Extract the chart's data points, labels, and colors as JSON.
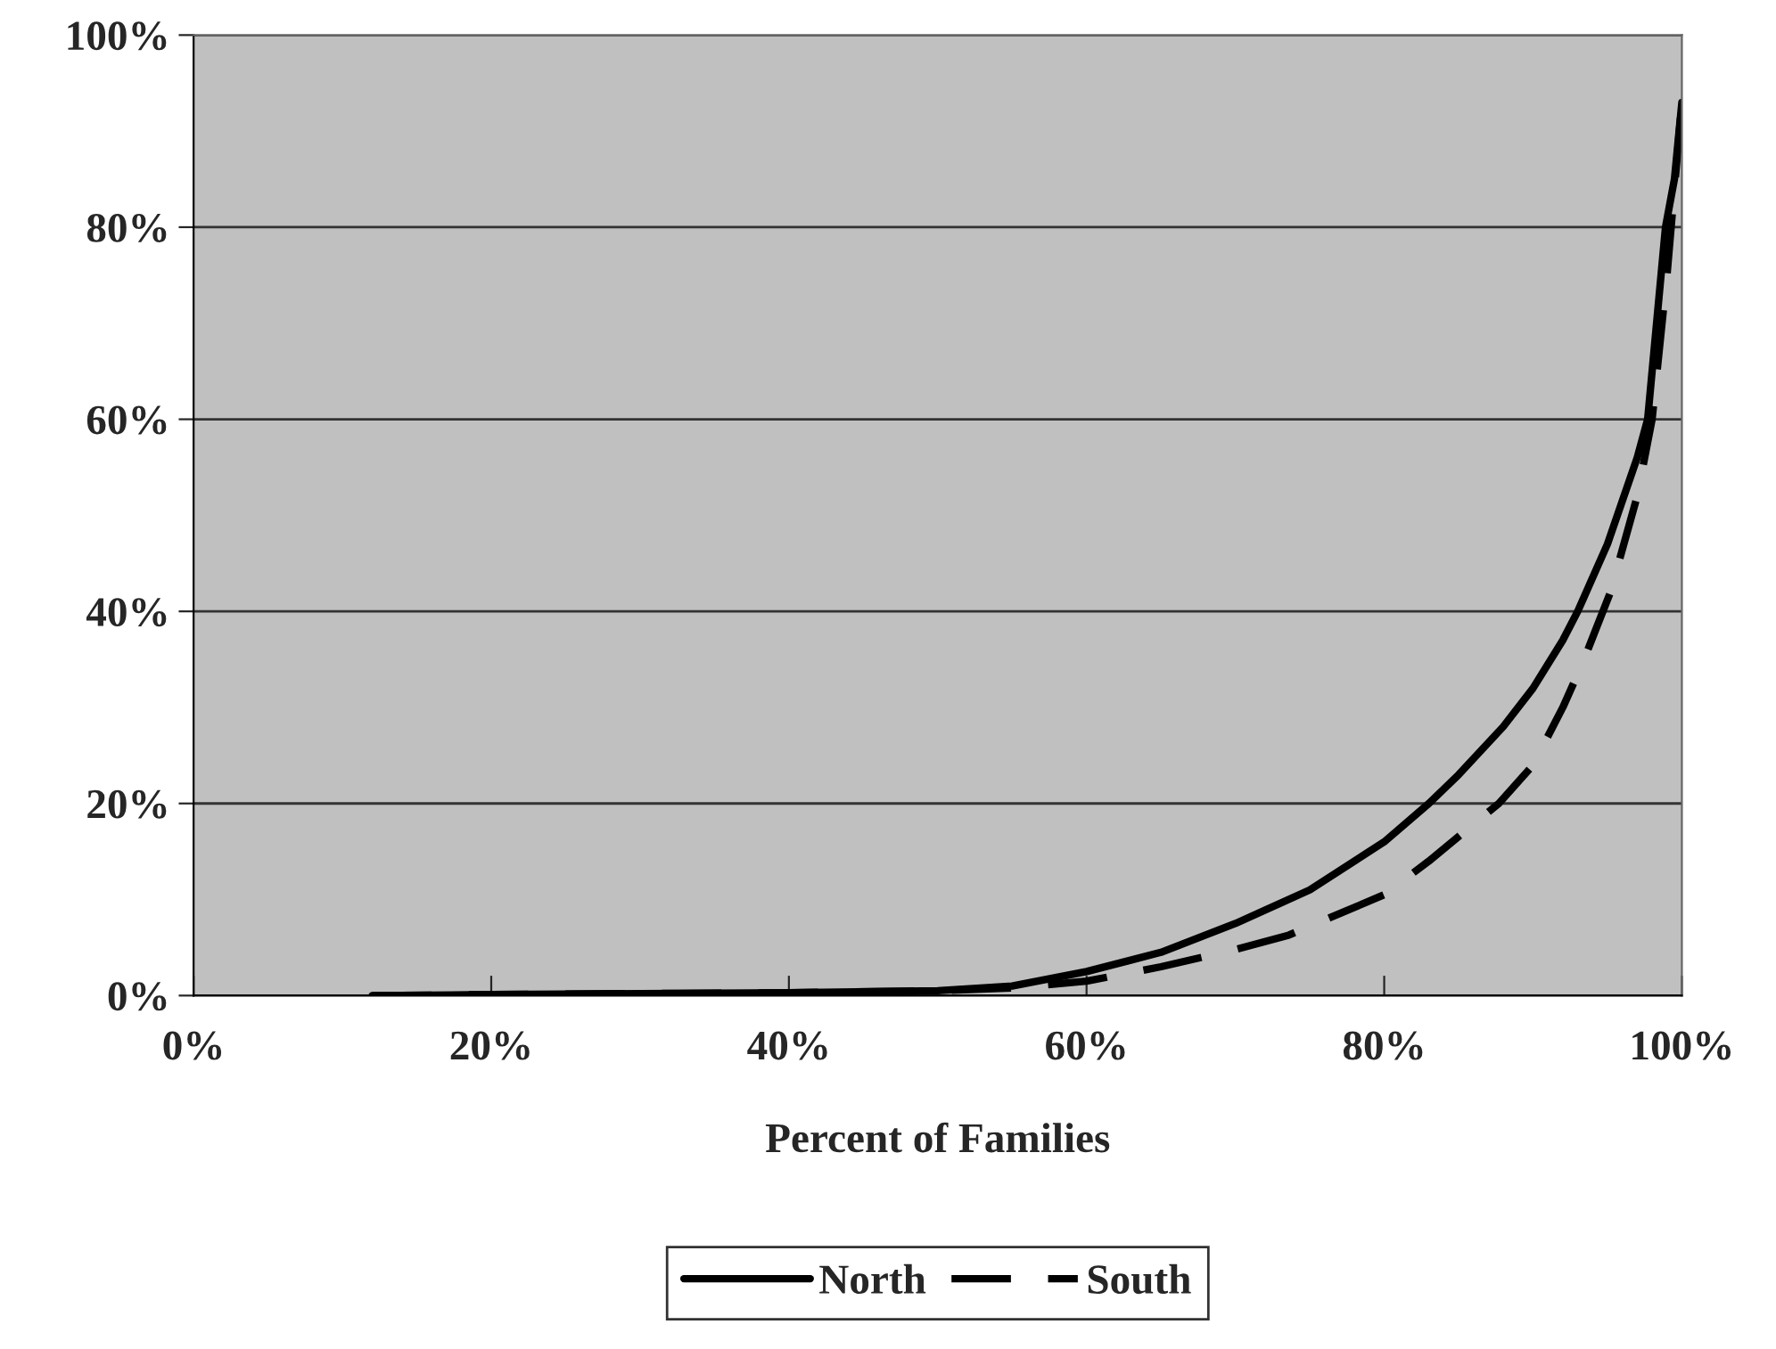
{
  "chart_data": {
    "type": "line",
    "xlabel": "Percent of Families",
    "xlim": [
      0,
      100
    ],
    "xticks": [
      {
        "value": 0,
        "label": "0%"
      },
      {
        "value": 20,
        "label": "20%"
      },
      {
        "value": 40,
        "label": "40%"
      },
      {
        "value": 60,
        "label": "60%"
      },
      {
        "value": 80,
        "label": "80%"
      },
      {
        "value": 100,
        "label": "100%"
      }
    ],
    "ylim": [
      0,
      100
    ],
    "yticks": [
      {
        "value": 0,
        "label": "0%"
      },
      {
        "value": 20,
        "label": "20%"
      },
      {
        "value": 40,
        "label": "40%"
      },
      {
        "value": 60,
        "label": "60%"
      },
      {
        "value": 80,
        "label": "80%"
      },
      {
        "value": 100,
        "label": "100%"
      }
    ],
    "grid": "y",
    "legend": "bottom",
    "series": [
      {
        "name": "North",
        "color": "#000000",
        "line_style": "solid",
        "x": [
          12,
          20,
          30,
          40,
          50,
          55,
          60,
          65,
          70,
          75,
          80,
          83,
          85,
          88,
          90,
          92,
          93,
          95,
          97,
          97.7,
          98.9,
          99.5,
          100
        ],
        "values": [
          0,
          0.1,
          0.2,
          0.3,
          0.5,
          1,
          2.5,
          4.5,
          7.5,
          11,
          16,
          20,
          23,
          28,
          32,
          37,
          40,
          47,
          56,
          60,
          80,
          85,
          93
        ]
      },
      {
        "name": "South",
        "color": "#000000",
        "line_style": "dashed",
        "x": [
          12,
          20,
          30,
          40,
          50,
          55,
          60,
          65,
          70,
          73.6,
          80,
          83,
          87.7,
          90,
          92,
          93.3,
          95.2,
          97,
          98,
          99,
          100
        ],
        "values": [
          0,
          0.1,
          0.2,
          0.3,
          0.5,
          0.8,
          1.5,
          3,
          4.8,
          6.3,
          10.5,
          14,
          20,
          24,
          30,
          34.5,
          42,
          52,
          60,
          75,
          93
        ]
      }
    ]
  }
}
